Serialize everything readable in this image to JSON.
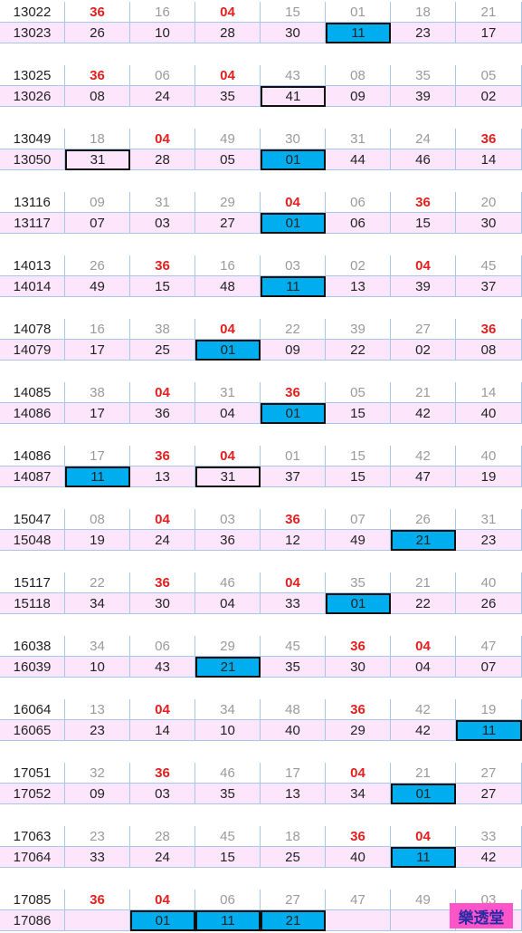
{
  "highlight_numbers": [
    "04",
    "36"
  ],
  "groups": [
    {
      "prev_issue": "13022",
      "prev_numbers": [
        "36",
        "16",
        "04",
        "15",
        "01",
        "18",
        "21"
      ],
      "issue": "13023",
      "numbers": [
        "26",
        "10",
        "28",
        "30",
        "11",
        "23",
        "17"
      ],
      "boxed": [
        4
      ],
      "blue": [
        4
      ]
    },
    {
      "prev_issue": "13025",
      "prev_numbers": [
        "36",
        "06",
        "04",
        "43",
        "08",
        "35",
        "05"
      ],
      "issue": "13026",
      "numbers": [
        "08",
        "24",
        "35",
        "41",
        "09",
        "39",
        "02"
      ],
      "boxed": [
        3
      ],
      "blue": []
    },
    {
      "prev_issue": "13049",
      "prev_numbers": [
        "18",
        "04",
        "49",
        "30",
        "31",
        "24",
        "36"
      ],
      "issue": "13050",
      "numbers": [
        "31",
        "28",
        "05",
        "01",
        "44",
        "46",
        "14"
      ],
      "boxed": [
        0,
        3
      ],
      "blue": [
        3
      ]
    },
    {
      "prev_issue": "13116",
      "prev_numbers": [
        "09",
        "31",
        "29",
        "04",
        "06",
        "36",
        "20"
      ],
      "issue": "13117",
      "numbers": [
        "07",
        "03",
        "27",
        "01",
        "06",
        "15",
        "30"
      ],
      "boxed": [
        3
      ],
      "blue": [
        3
      ]
    },
    {
      "prev_issue": "14013",
      "prev_numbers": [
        "26",
        "36",
        "16",
        "03",
        "02",
        "04",
        "45"
      ],
      "issue": "14014",
      "numbers": [
        "49",
        "15",
        "48",
        "11",
        "13",
        "39",
        "37"
      ],
      "boxed": [
        3
      ],
      "blue": [
        3
      ]
    },
    {
      "prev_issue": "14078",
      "prev_numbers": [
        "16",
        "38",
        "04",
        "22",
        "39",
        "27",
        "36"
      ],
      "issue": "14079",
      "numbers": [
        "17",
        "25",
        "01",
        "09",
        "22",
        "02",
        "08"
      ],
      "boxed": [
        2
      ],
      "blue": [
        2
      ]
    },
    {
      "prev_issue": "14085",
      "prev_numbers": [
        "38",
        "04",
        "31",
        "36",
        "05",
        "21",
        "14"
      ],
      "issue": "14086",
      "numbers": [
        "17",
        "36",
        "04",
        "01",
        "15",
        "42",
        "40"
      ],
      "boxed": [
        3
      ],
      "blue": [
        3
      ]
    },
    {
      "prev_issue": "14086",
      "prev_numbers": [
        "17",
        "36",
        "04",
        "01",
        "15",
        "42",
        "40"
      ],
      "issue": "14087",
      "numbers": [
        "11",
        "13",
        "31",
        "37",
        "15",
        "47",
        "19"
      ],
      "boxed": [
        0,
        2
      ],
      "blue": [
        0
      ]
    },
    {
      "prev_issue": "15047",
      "prev_numbers": [
        "08",
        "04",
        "03",
        "36",
        "07",
        "26",
        "31"
      ],
      "issue": "15048",
      "numbers": [
        "19",
        "24",
        "36",
        "12",
        "49",
        "21",
        "23"
      ],
      "boxed": [
        5
      ],
      "blue": [
        5
      ]
    },
    {
      "prev_issue": "15117",
      "prev_numbers": [
        "22",
        "36",
        "46",
        "04",
        "35",
        "21",
        "40"
      ],
      "issue": "15118",
      "numbers": [
        "34",
        "30",
        "04",
        "33",
        "01",
        "22",
        "26"
      ],
      "boxed": [
        4
      ],
      "blue": [
        4
      ]
    },
    {
      "prev_issue": "16038",
      "prev_numbers": [
        "34",
        "06",
        "29",
        "45",
        "36",
        "04",
        "47"
      ],
      "issue": "16039",
      "numbers": [
        "10",
        "43",
        "21",
        "35",
        "30",
        "04",
        "07"
      ],
      "boxed": [
        2
      ],
      "blue": [
        2
      ]
    },
    {
      "prev_issue": "16064",
      "prev_numbers": [
        "13",
        "04",
        "34",
        "48",
        "36",
        "42",
        "19"
      ],
      "issue": "16065",
      "numbers": [
        "23",
        "14",
        "10",
        "40",
        "29",
        "42",
        "11"
      ],
      "boxed": [
        6
      ],
      "blue": [
        6
      ]
    },
    {
      "prev_issue": "17051",
      "prev_numbers": [
        "32",
        "36",
        "46",
        "17",
        "04",
        "21",
        "27"
      ],
      "issue": "17052",
      "numbers": [
        "09",
        "03",
        "35",
        "13",
        "34",
        "01",
        "27"
      ],
      "boxed": [
        5
      ],
      "blue": [
        5
      ]
    },
    {
      "prev_issue": "17063",
      "prev_numbers": [
        "23",
        "28",
        "45",
        "18",
        "36",
        "04",
        "33"
      ],
      "issue": "17064",
      "numbers": [
        "33",
        "24",
        "15",
        "25",
        "40",
        "11",
        "42"
      ],
      "boxed": [
        5
      ],
      "blue": [
        5
      ]
    },
    {
      "prev_issue": "17085",
      "prev_numbers": [
        "36",
        "04",
        "06",
        "27",
        "47",
        "49",
        "03"
      ],
      "issue": "17086",
      "numbers": [
        "",
        "01",
        "11",
        "21",
        "",
        "",
        ""
      ],
      "boxed": [
        1,
        2,
        3
      ],
      "blue": [
        1,
        2,
        3
      ]
    }
  ],
  "badge": "樂透堂"
}
